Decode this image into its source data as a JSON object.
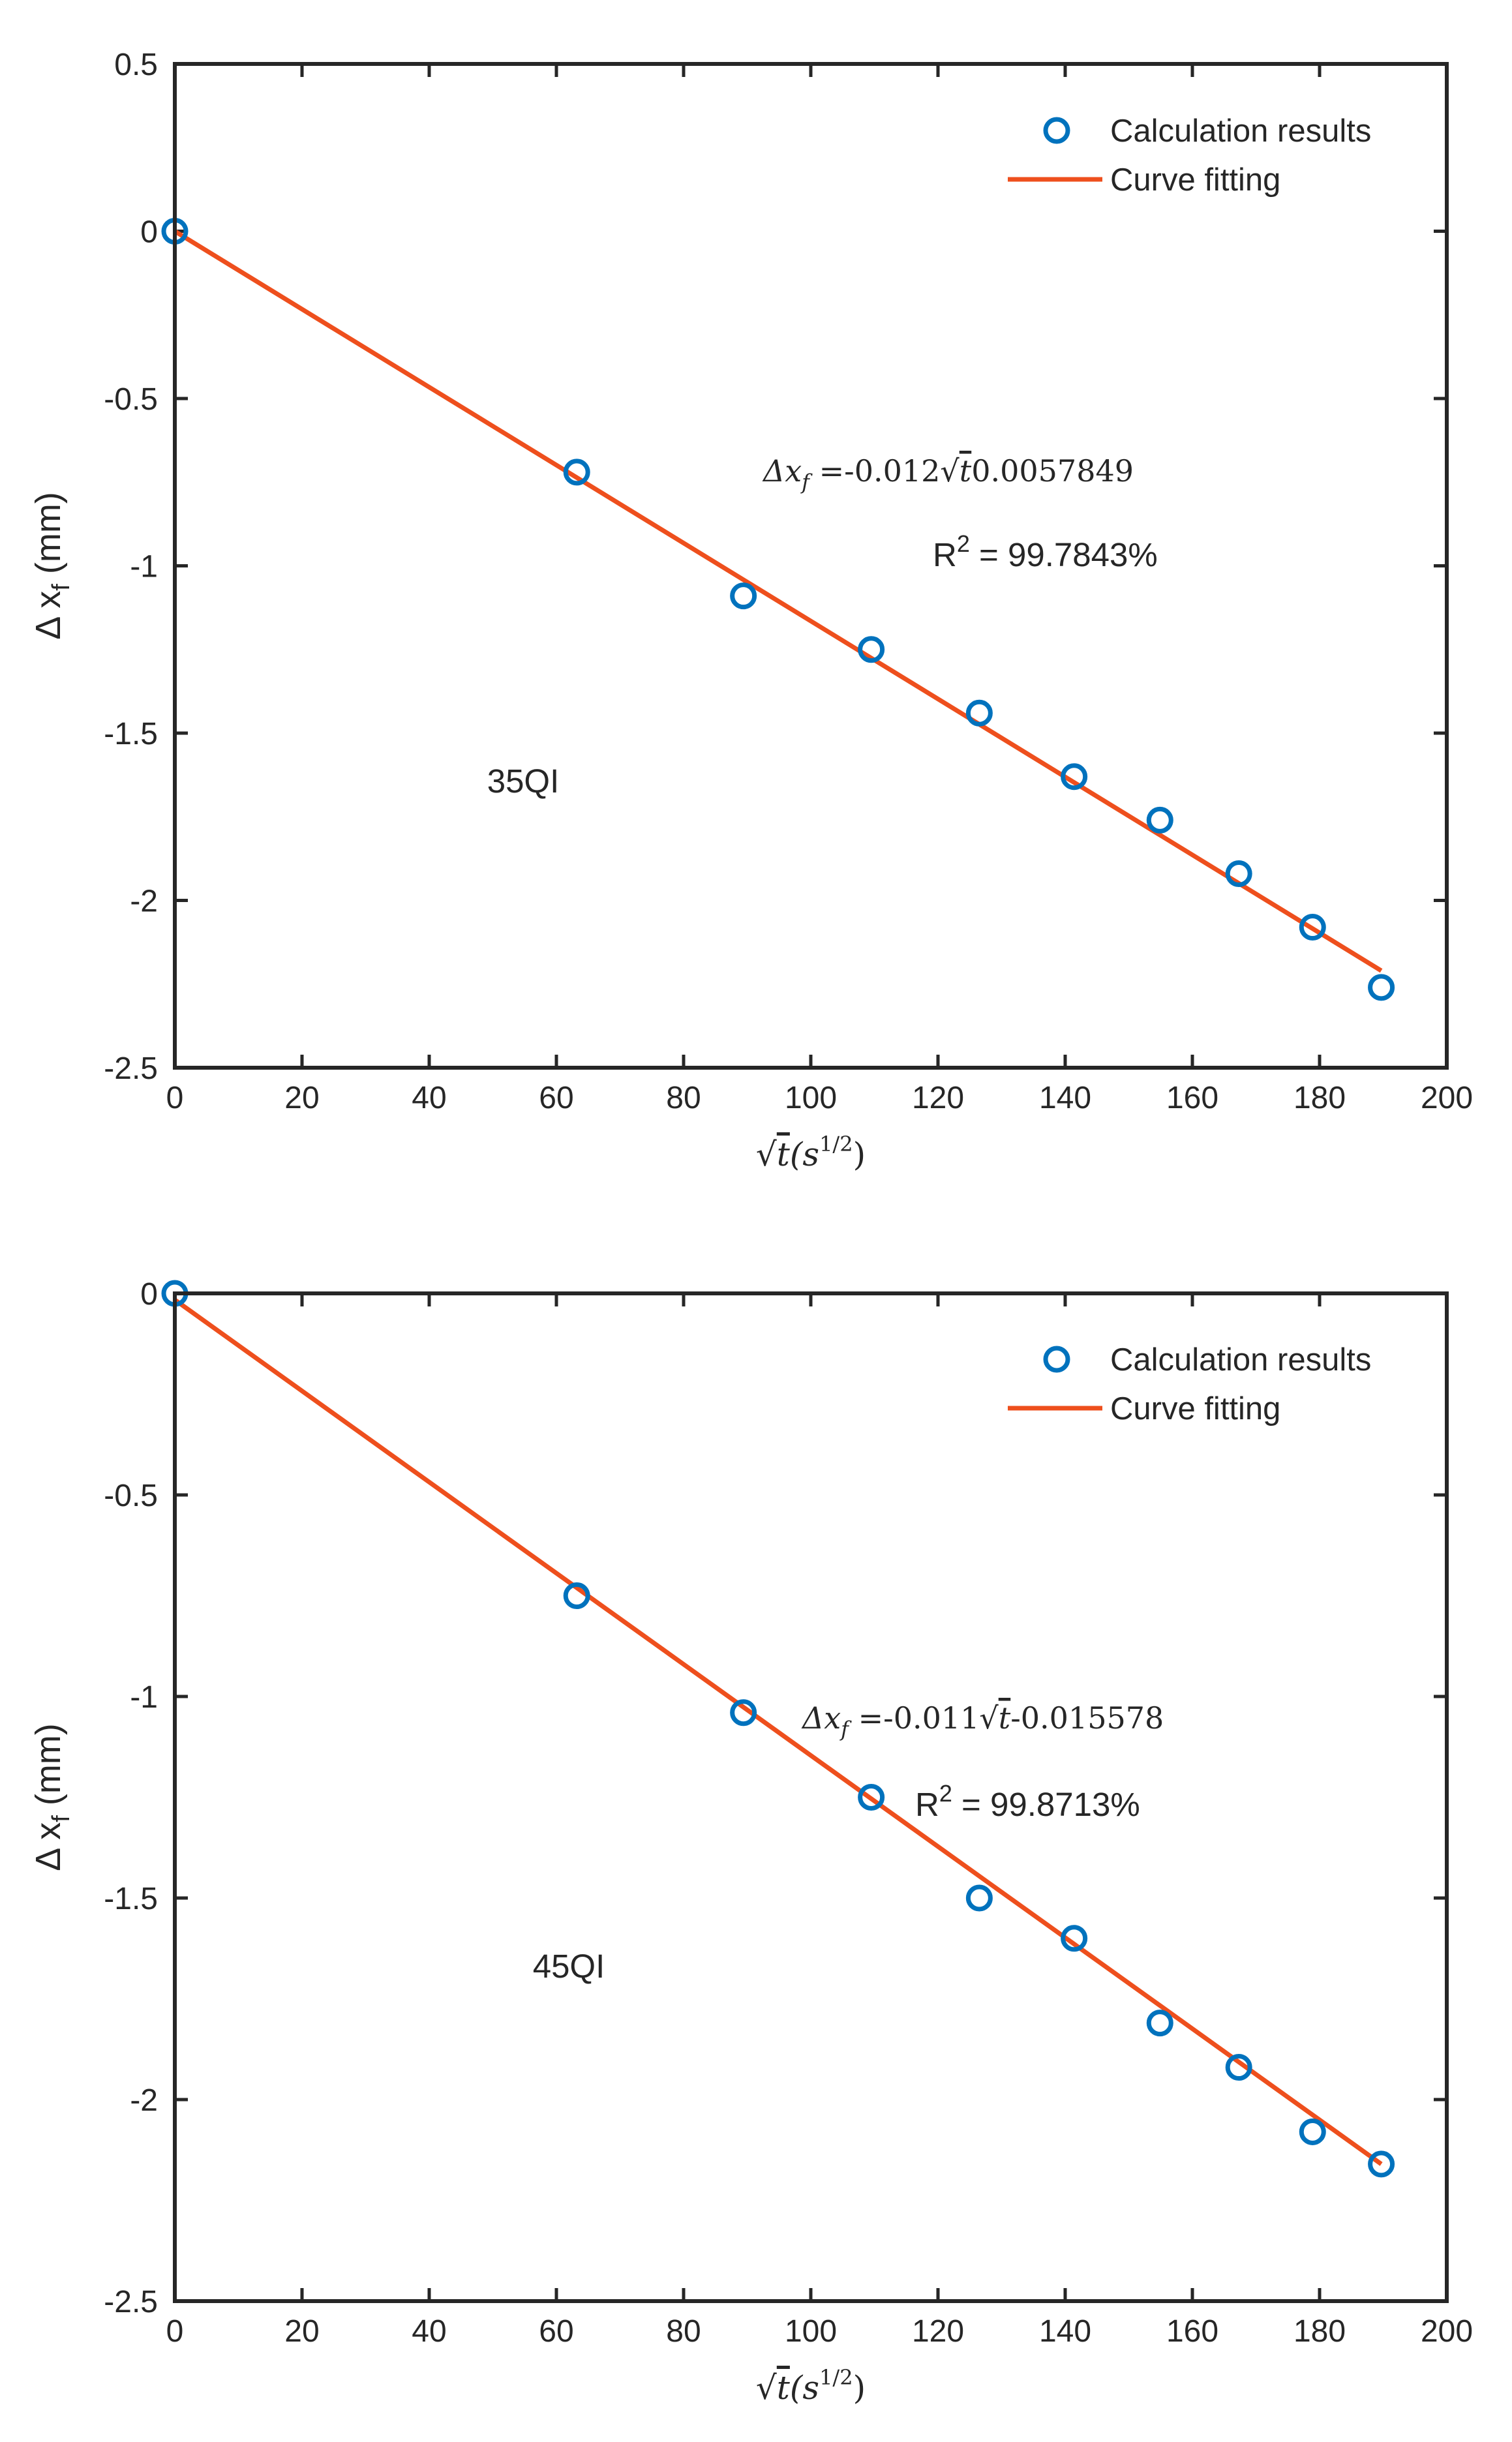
{
  "chart_data": [
    {
      "type": "scatter",
      "panel_label": "35QI",
      "xlabel": "√t(s¹ᐟ²)",
      "xlabel_parts": {
        "radical": "√",
        "var": "t",
        "open": "(s",
        "sup": "1/2",
        "close": ")"
      },
      "ylabel": "Δ x",
      "ylabel_subscript": "f",
      "ylabel_unit": "(mm)",
      "xlim": [
        0,
        200
      ],
      "ylim": [
        -2.5,
        0.5
      ],
      "xticks": [
        "0",
        "20",
        "40",
        "60",
        "80",
        "100",
        "120",
        "140",
        "160",
        "180",
        "200"
      ],
      "xtick_values": [
        0,
        20,
        40,
        60,
        80,
        100,
        120,
        140,
        160,
        180,
        200
      ],
      "yticks": [
        "0.5",
        "0",
        "-0.5",
        "-1",
        "-1.5",
        "-2",
        "-2.5"
      ],
      "ytick_values": [
        0.5,
        0,
        -0.5,
        -1,
        -1.5,
        -2,
        -2.5
      ],
      "legend": {
        "position": "top-right",
        "scatter_label": "Calculation results",
        "line_label": "Curve fitting"
      },
      "series": [
        {
          "name": "Calculation results",
          "kind": "markers",
          "x": [
            0,
            63.2,
            89.4,
            109.5,
            126.5,
            141.4,
            154.9,
            167.3,
            178.9,
            189.7
          ],
          "y": [
            0,
            -0.72,
            -1.09,
            -1.25,
            -1.44,
            -1.63,
            -1.76,
            -1.92,
            -2.08,
            -2.26
          ]
        },
        {
          "name": "Curve fitting",
          "kind": "line",
          "x": [
            0,
            189.7
          ],
          "y": [
            0,
            -2.21
          ]
        }
      ],
      "equation": {
        "lhs": "Δx",
        "lhs_sub": "f",
        "rhs_prefix": "=-0.012",
        "radical": "√",
        "var": "t",
        "rhs_suffix": "0.0057849"
      },
      "r2": {
        "label": "R",
        "sup": "2",
        "value": " = 99.7843%"
      },
      "colors": {
        "marker": "#0072BD",
        "line": "#EE4F1D",
        "axis": "#262626"
      }
    },
    {
      "type": "scatter",
      "panel_label": "45QI",
      "xlabel": "√t(s¹ᐟ²)",
      "xlabel_parts": {
        "radical": "√",
        "var": "t",
        "open": "(s",
        "sup": "1/2",
        "close": ")"
      },
      "ylabel": "Δ x",
      "ylabel_subscript": "f",
      "ylabel_unit": "(mm)",
      "xlim": [
        0,
        200
      ],
      "ylim": [
        -2.5,
        0
      ],
      "xticks": [
        "0",
        "20",
        "40",
        "60",
        "80",
        "100",
        "120",
        "140",
        "160",
        "180",
        "200"
      ],
      "xtick_values": [
        0,
        20,
        40,
        60,
        80,
        100,
        120,
        140,
        160,
        180,
        200
      ],
      "yticks": [
        "0",
        "-0.5",
        "-1",
        "-1.5",
        "-2",
        "-2.5"
      ],
      "ytick_values": [
        0,
        -0.5,
        -1,
        -1.5,
        -2,
        -2.5
      ],
      "legend": {
        "position": "top-right",
        "scatter_label": "Calculation results",
        "line_label": "Curve fitting"
      },
      "series": [
        {
          "name": "Calculation results",
          "kind": "markers",
          "x": [
            0,
            63.2,
            89.4,
            109.5,
            126.5,
            141.4,
            154.9,
            167.3,
            178.9,
            189.7
          ],
          "y": [
            0,
            -0.75,
            -1.04,
            -1.25,
            -1.5,
            -1.6,
            -1.81,
            -1.92,
            -2.08,
            -2.16
          ]
        },
        {
          "name": "Curve fitting",
          "kind": "line",
          "x": [
            0,
            189.7
          ],
          "y": [
            -0.016,
            -2.16
          ]
        }
      ],
      "equation": {
        "lhs": "Δx",
        "lhs_sub": "f",
        "rhs_prefix": "=-0.011",
        "radical": "√",
        "var": "t",
        "rhs_suffix": "-0.015578"
      },
      "r2": {
        "label": "R",
        "sup": "2",
        "value": " = 99.8713%"
      },
      "colors": {
        "marker": "#0072BD",
        "line": "#EE4F1D",
        "axis": "#262626"
      }
    }
  ]
}
